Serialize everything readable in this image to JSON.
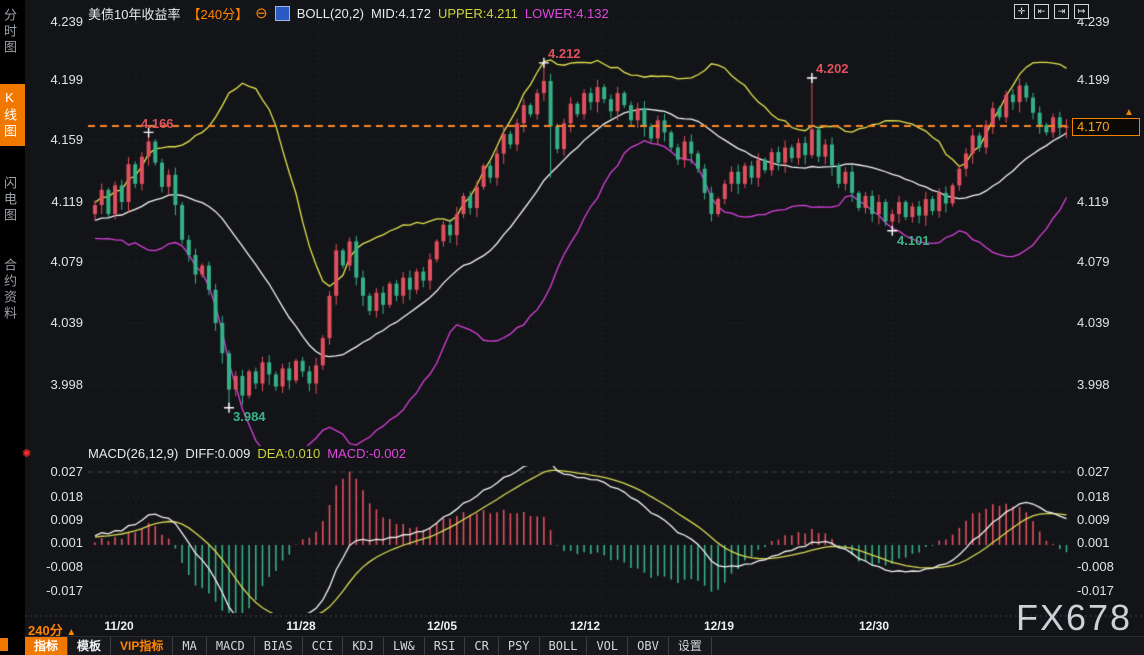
{
  "sidebar": {
    "items": [
      {
        "label": "分时图",
        "selected": false
      },
      {
        "label": "K线图",
        "selected": true
      },
      {
        "label": "闪电图",
        "selected": false
      },
      {
        "label": "合约资料",
        "selected": false
      }
    ]
  },
  "header": {
    "title": "美债10年收益率",
    "period": "【240分】",
    "collapse_glyph": "⊖",
    "boll_label": "BOLL(20,2)",
    "mid": "MID:4.172",
    "upper": "UPPER:4.211",
    "lower": "LOWER:4.132"
  },
  "macd_header": {
    "label": "MACD(26,12,9)",
    "diff": "DIFF:0.009",
    "dea": "DEA:0.010",
    "macd": "MACD:-0.002"
  },
  "corner_icons": [
    {
      "name": "pan-move",
      "glyph": "✛"
    },
    {
      "name": "zoom-axis-in",
      "glyph": "⇤"
    },
    {
      "name": "zoom-axis-out",
      "glyph": "⇥"
    },
    {
      "name": "step-forward",
      "glyph": "↦"
    }
  ],
  "icons": {
    "live": "✺"
  },
  "price_axis_left": [
    "4.239",
    "4.199",
    "4.159",
    "4.119",
    "4.079",
    "4.039",
    "3.998"
  ],
  "price_axis_right": [
    "4.239",
    "4.199",
    "4.119",
    "4.079",
    "4.039",
    "3.998"
  ],
  "macd_axis_left": [
    "0.027",
    "0.018",
    "0.009",
    "0.001",
    "-0.008",
    "-0.017"
  ],
  "macd_axis_right": [
    "0.027",
    "0.018",
    "0.009",
    "0.001",
    "-0.008",
    "-0.017"
  ],
  "x_axis": [
    "11/20",
    "11/28",
    "12/05",
    "12/12",
    "12/19",
    "12/30"
  ],
  "price_tag": "4.170",
  "price_tag_arrow": "▲",
  "period_badge": {
    "label": "240分",
    "arrow": "▲"
  },
  "bottom_tabs": [
    {
      "label": "指标"
    },
    {
      "label": "模板"
    },
    {
      "label": "VIP指标"
    },
    {
      "label": "MA"
    },
    {
      "label": "MACD"
    },
    {
      "label": "BIAS"
    },
    {
      "label": "CCI"
    },
    {
      "label": "KDJ"
    },
    {
      "label": "LW&"
    },
    {
      "label": "RSI"
    },
    {
      "label": "CR"
    },
    {
      "label": "PSY"
    },
    {
      "label": "BOLL"
    },
    {
      "label": "VOL"
    },
    {
      "label": "OBV"
    },
    {
      "label": "设置"
    }
  ],
  "watermark": "FX678",
  "colors": {
    "up": "#e0505e",
    "down": "#36b087",
    "boll_upper": "#e3e34e",
    "boll_mid": "#f2f2f2",
    "boll_lower": "#d840dc",
    "macd_diff": "#f2f2f2",
    "macd_dea": "#d9d955",
    "hist_pos": "#e0505e",
    "hist_neg": "#36b087",
    "price_line": "#f5872b",
    "grid": "#2e3138",
    "grid_bright": "#43474f",
    "accent": "#f07800",
    "cross": "#ffffff"
  },
  "chart_data": {
    "type": "candlestick+macd",
    "symbol": "美债10年收益率",
    "period": "240分",
    "boll_params": [
      20,
      2
    ],
    "boll_mid": 4.172,
    "boll_upper": 4.211,
    "boll_lower": 4.132,
    "macd_params": [
      26,
      12,
      9
    ],
    "diff": 0.009,
    "dea": 0.01,
    "macd": -0.002,
    "last_price": 4.17,
    "price_axis": [
      4.239,
      4.199,
      4.159,
      4.119,
      4.079,
      4.039,
      3.998
    ],
    "macd_axis": [
      0.027,
      0.018,
      0.009,
      0.001,
      -0.008,
      -0.017
    ],
    "dates": [
      "11/20",
      "11/28",
      "12/05",
      "12/12",
      "12/19",
      "12/30"
    ],
    "warmup": 26,
    "closes": [
      4.095,
      4.102,
      4.096,
      4.108,
      4.1,
      4.11,
      4.103,
      4.097,
      4.109,
      4.101,
      4.112,
      4.105,
      4.098,
      4.11,
      4.104,
      4.115,
      4.107,
      4.1,
      4.111,
      4.106,
      4.117,
      4.109,
      4.103,
      4.114,
      4.108,
      4.112,
      4.118,
      4.128,
      4.112,
      4.131,
      4.12,
      4.145,
      4.132,
      4.15,
      4.16,
      4.146,
      4.13,
      4.138,
      4.118,
      4.095,
      4.085,
      4.072,
      4.078,
      4.062,
      4.04,
      4.02,
      3.996,
      4.005,
      3.992,
      4.008,
      4.0,
      4.014,
      4.006,
      3.998,
      4.01,
      4.002,
      4.015,
      4.008,
      4.0,
      4.012,
      4.03,
      4.058,
      4.088,
      4.078,
      4.094,
      4.07,
      4.058,
      4.048,
      4.06,
      4.052,
      4.066,
      4.058,
      4.07,
      4.062,
      4.074,
      4.068,
      4.082,
      4.094,
      4.105,
      4.098,
      4.112,
      4.124,
      4.116,
      4.13,
      4.144,
      4.136,
      4.152,
      4.165,
      4.158,
      4.172,
      4.184,
      4.178,
      4.192,
      4.2,
      4.17,
      4.155,
      4.172,
      4.185,
      4.178,
      4.192,
      4.186,
      4.196,
      4.188,
      4.18,
      4.192,
      4.184,
      4.174,
      4.182,
      4.17,
      4.162,
      4.174,
      4.166,
      4.156,
      4.148,
      4.16,
      4.152,
      4.142,
      4.126,
      4.112,
      4.122,
      4.132,
      4.14,
      4.132,
      4.144,
      4.136,
      4.148,
      4.141,
      4.153,
      4.146,
      4.156,
      4.149,
      4.159,
      4.151,
      4.168,
      4.15,
      4.158,
      4.144,
      4.132,
      4.14,
      4.126,
      4.116,
      4.124,
      4.112,
      4.12,
      4.107,
      4.112,
      4.12,
      4.11,
      4.117,
      4.111,
      4.122,
      4.114,
      4.126,
      4.119,
      4.131,
      4.142,
      4.152,
      4.164,
      4.156,
      4.171,
      4.182,
      4.176,
      4.191,
      4.186,
      4.197,
      4.189,
      4.179,
      4.171,
      4.166,
      4.176,
      4.169,
      4.17
    ],
    "wick_overrides": {
      "34": {
        "h": 4.166
      },
      "46": {
        "l": 3.984
      },
      "93": {
        "h": 4.212
      },
      "94": {
        "l": 4.136
      },
      "118": {
        "l": 4.107
      },
      "133": {
        "h": 4.202
      },
      "145": {
        "l": 4.101
      }
    },
    "annotations": [
      {
        "bar": 34,
        "price": 4.166,
        "text": "4.166",
        "tone": "red"
      },
      {
        "bar": 93,
        "price": 4.212,
        "text": "4.212",
        "tone": "red"
      },
      {
        "bar": 133,
        "price": 4.202,
        "text": "4.202",
        "tone": "red"
      },
      {
        "bar": 145,
        "price": 4.101,
        "text": "4.101",
        "tone": "green"
      },
      {
        "bar": 46,
        "price": 3.984,
        "text": "3.984",
        "tone": "green"
      }
    ]
  }
}
